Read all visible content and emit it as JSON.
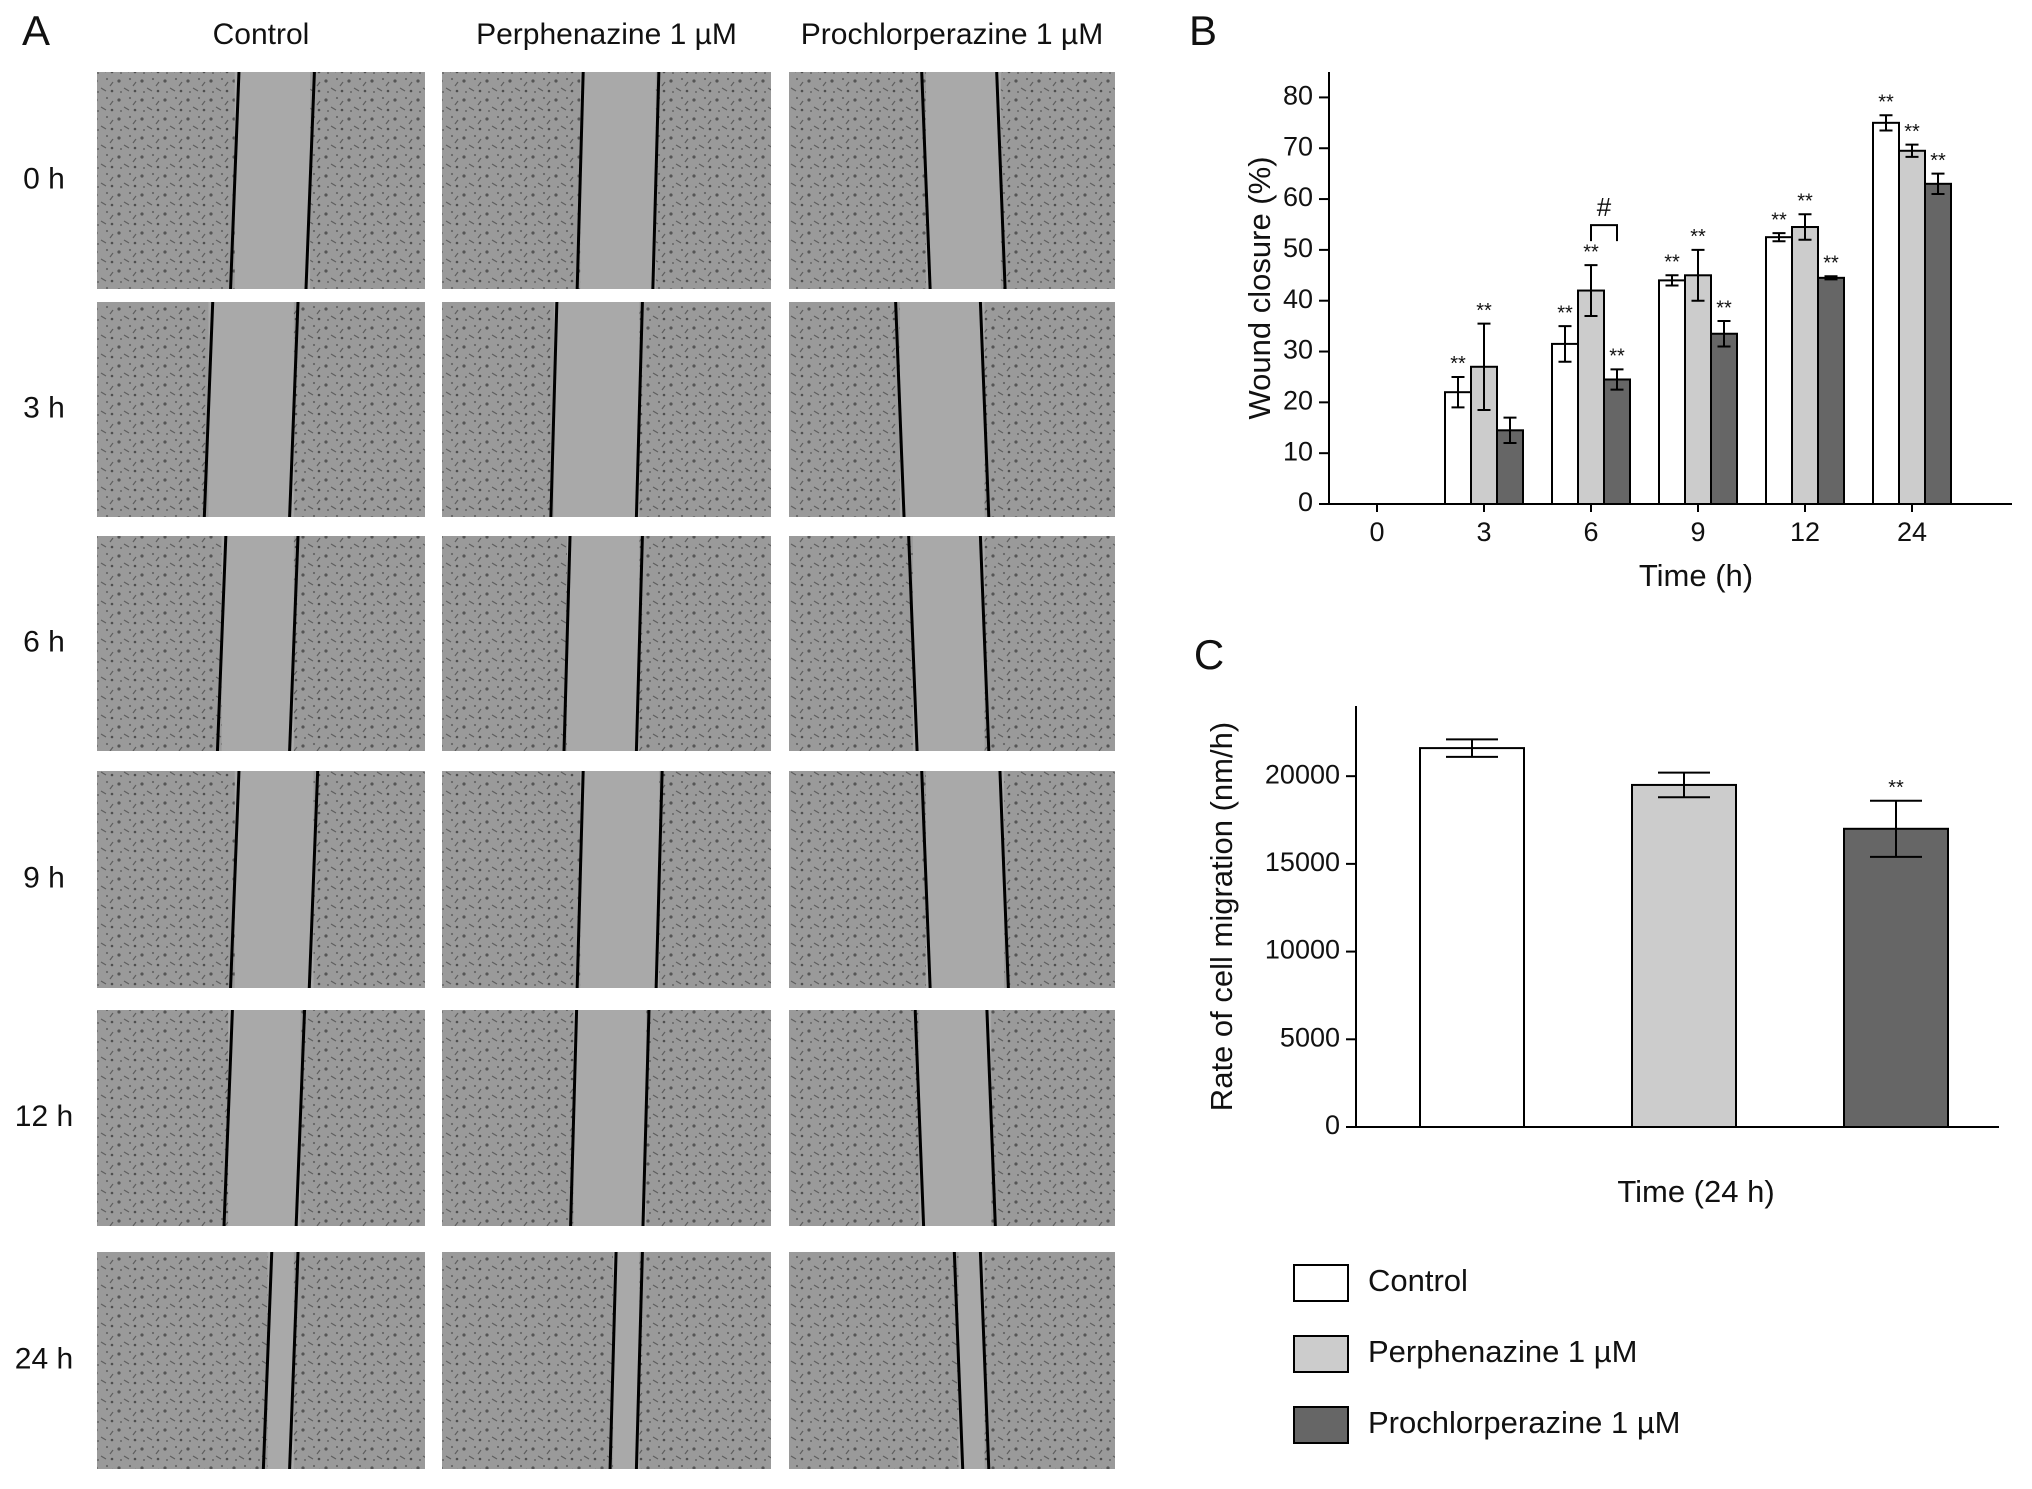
{
  "panel_labels": [
    "A",
    "B",
    "C"
  ],
  "panel_a": {
    "columns": [
      "Control",
      "Perphenazine 1 µM",
      "Prochlorperazine 1 µM"
    ],
    "rows": [
      "0 h",
      "3 h",
      "6 h",
      "9 h",
      "12 h",
      "24 h"
    ]
  },
  "chart_data": [
    {
      "type": "bar",
      "x_label": "Time (h)",
      "y_label": "Wound closure (%)",
      "categories": [
        "0",
        "3",
        "6",
        "9",
        "12",
        "24"
      ],
      "ylim": [
        0,
        85
      ],
      "yticks": [
        0,
        10,
        20,
        30,
        40,
        50,
        60,
        70,
        80
      ],
      "series": [
        {
          "color": "#ffffff",
          "values": [
            0,
            22,
            31.5,
            44,
            52.5,
            75
          ],
          "errors": [
            null,
            3,
            3.5,
            1,
            0.8,
            1.5
          ],
          "significance": [
            null,
            "**",
            "**",
            "**",
            "**",
            "**"
          ]
        },
        {
          "color": "#cccccc",
          "values": [
            0,
            27,
            42,
            45,
            54.5,
            69.5
          ],
          "errors": [
            null,
            8.5,
            5,
            5,
            2.5,
            1.2
          ],
          "significance": [
            null,
            "**",
            "**",
            "**",
            "**",
            "**"
          ]
        },
        {
          "color": "#666666",
          "values": [
            0,
            14.5,
            24.5,
            33.5,
            44.5,
            63
          ],
          "errors": [
            null,
            2.5,
            2,
            2.5,
            0.3,
            2
          ],
          "significance": [
            null,
            null,
            "**",
            "**",
            "**",
            "**"
          ]
        }
      ],
      "annotations": [
        {
          "text": "#",
          "category": 2,
          "series": [
            1,
            2
          ]
        }
      ]
    },
    {
      "type": "bar",
      "x_label": "Time (24 h)",
      "y_label": "Rate of cell migration (nm/h)",
      "categories": [
        null
      ],
      "ylim": [
        0,
        24000
      ],
      "yticks": [
        0,
        5000,
        10000,
        15000,
        20000
      ],
      "series": [
        {
          "name": "Control",
          "color": "#ffffff",
          "values": [
            21600
          ],
          "errors": [
            500
          ],
          "significance": [
            null
          ]
        },
        {
          "name": "Perphenazine 1 µM",
          "color": "#cccccc",
          "values": [
            19500
          ],
          "errors": [
            700
          ],
          "significance": [
            null
          ]
        },
        {
          "name": "Prochlorperazine 1 µM",
          "color": "#666666",
          "values": [
            17000
          ],
          "errors": [
            1600
          ],
          "significance": [
            "**"
          ]
        }
      ]
    }
  ]
}
